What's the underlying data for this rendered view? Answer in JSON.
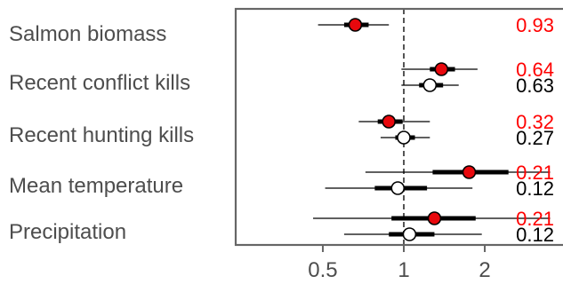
{
  "chart_data": {
    "type": "forest",
    "x_scale": "log",
    "xlim": [
      0.33,
      3.5
    ],
    "reference_line": 1,
    "x_ticks": [
      {
        "value": 0.5,
        "label": "0.5"
      },
      {
        "value": 1,
        "label": "1"
      },
      {
        "value": 2,
        "label": "2"
      }
    ],
    "colors": {
      "red_series": "#e8080d",
      "white_series": "#ffffff",
      "text_black": "#000000",
      "text_red": "#ff0000",
      "axis": "#666666"
    },
    "rows": [
      {
        "label": "Salmon biomass",
        "estimates": [
          {
            "series": "red",
            "estimate": 0.66,
            "inner": [
              0.6,
              0.74
            ],
            "outer": [
              0.48,
              0.88
            ],
            "prob": "0.93"
          }
        ]
      },
      {
        "label": "Recent conflict kills",
        "estimates": [
          {
            "series": "red",
            "estimate": 1.38,
            "inner": [
              1.25,
              1.55
            ],
            "outer": [
              0.98,
              1.88
            ],
            "prob": "0.64"
          },
          {
            "series": "white",
            "estimate": 1.25,
            "inner": [
              1.14,
              1.4
            ],
            "outer": [
              0.98,
              1.6
            ],
            "prob": "0.63"
          }
        ]
      },
      {
        "label": "Recent hunting kills",
        "estimates": [
          {
            "series": "red",
            "estimate": 0.88,
            "inner": [
              0.8,
              0.99
            ],
            "outer": [
              0.68,
              1.25
            ],
            "prob": "0.32"
          },
          {
            "series": "white",
            "estimate": 1.0,
            "inner": [
              0.93,
              1.1
            ],
            "outer": [
              0.82,
              1.25
            ],
            "prob": "0.27"
          }
        ]
      },
      {
        "label": "Mean temperature",
        "estimates": [
          {
            "series": "red",
            "estimate": 1.75,
            "inner": [
              1.28,
              2.45
            ],
            "outer": [
              0.72,
              3.5
            ],
            "prob": "0.21"
          },
          {
            "series": "white",
            "estimate": 0.95,
            "inner": [
              0.78,
              1.22
            ],
            "outer": [
              0.51,
              1.8
            ],
            "prob": "0.12"
          }
        ]
      },
      {
        "label": "Precipitation",
        "estimates": [
          {
            "series": "red",
            "estimate": 1.3,
            "inner": [
              0.9,
              1.85
            ],
            "outer": [
              0.46,
              3.5
            ],
            "prob": "0.21"
          },
          {
            "series": "white",
            "estimate": 1.05,
            "inner": [
              0.88,
              1.3
            ],
            "outer": [
              0.6,
              1.95
            ],
            "prob": "0.12"
          }
        ]
      }
    ]
  }
}
